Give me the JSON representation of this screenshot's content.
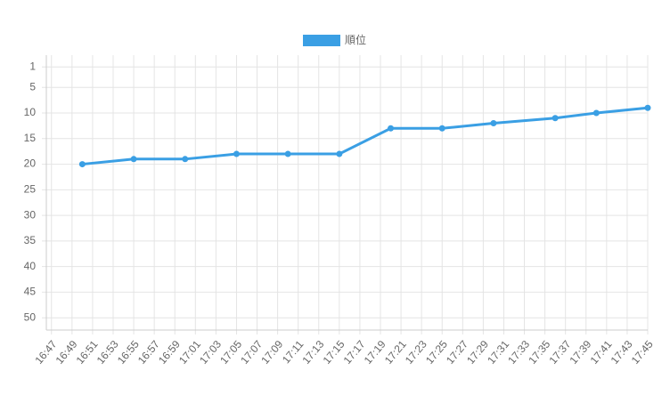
{
  "chart_data": {
    "type": "line",
    "x": [
      1010,
      1015,
      1020,
      1025,
      1030,
      1035,
      1040,
      1045,
      1050,
      1056,
      1060,
      1065
    ],
    "series": [
      {
        "name": "順位",
        "color": "#3a9fe4",
        "values": [
          20,
          19,
          19,
          18,
          18,
          18,
          13,
          13,
          12,
          11,
          10,
          9
        ]
      }
    ],
    "xlim": [
      1006.5,
      1065
    ],
    "xticks": [
      {
        "value": 1007,
        "label": "16:47"
      },
      {
        "value": 1009,
        "label": "16:49"
      },
      {
        "value": 1011,
        "label": "16:51"
      },
      {
        "value": 1013,
        "label": "16:53"
      },
      {
        "value": 1015,
        "label": "16:55"
      },
      {
        "value": 1017,
        "label": "16:57"
      },
      {
        "value": 1019,
        "label": "16:59"
      },
      {
        "value": 1021,
        "label": "17:01"
      },
      {
        "value": 1023,
        "label": "17:03"
      },
      {
        "value": 1025,
        "label": "17:05"
      },
      {
        "value": 1027,
        "label": "17:07"
      },
      {
        "value": 1029,
        "label": "17:09"
      },
      {
        "value": 1031,
        "label": "17:11"
      },
      {
        "value": 1033,
        "label": "17:13"
      },
      {
        "value": 1035,
        "label": "17:15"
      },
      {
        "value": 1037,
        "label": "17:17"
      },
      {
        "value": 1039,
        "label": "17:19"
      },
      {
        "value": 1041,
        "label": "17:21"
      },
      {
        "value": 1043,
        "label": "17:23"
      },
      {
        "value": 1045,
        "label": "17:25"
      },
      {
        "value": 1047,
        "label": "17:27"
      },
      {
        "value": 1049,
        "label": "17:29"
      },
      {
        "value": 1051,
        "label": "17:31"
      },
      {
        "value": 1053,
        "label": "17:33"
      },
      {
        "value": 1055,
        "label": "17:35"
      },
      {
        "value": 1057,
        "label": "17:37"
      },
      {
        "value": 1059,
        "label": "17:39"
      },
      {
        "value": 1061,
        "label": "17:41"
      },
      {
        "value": 1063,
        "label": "17:43"
      },
      {
        "value": 1065,
        "label": "17:45"
      }
    ],
    "ylim": [
      -1.3,
      52.4
    ],
    "y_reversed": true,
    "yticks": [
      1,
      5,
      10,
      15,
      20,
      25,
      30,
      35,
      40,
      45,
      50
    ],
    "grid": true,
    "legend": "top"
  }
}
